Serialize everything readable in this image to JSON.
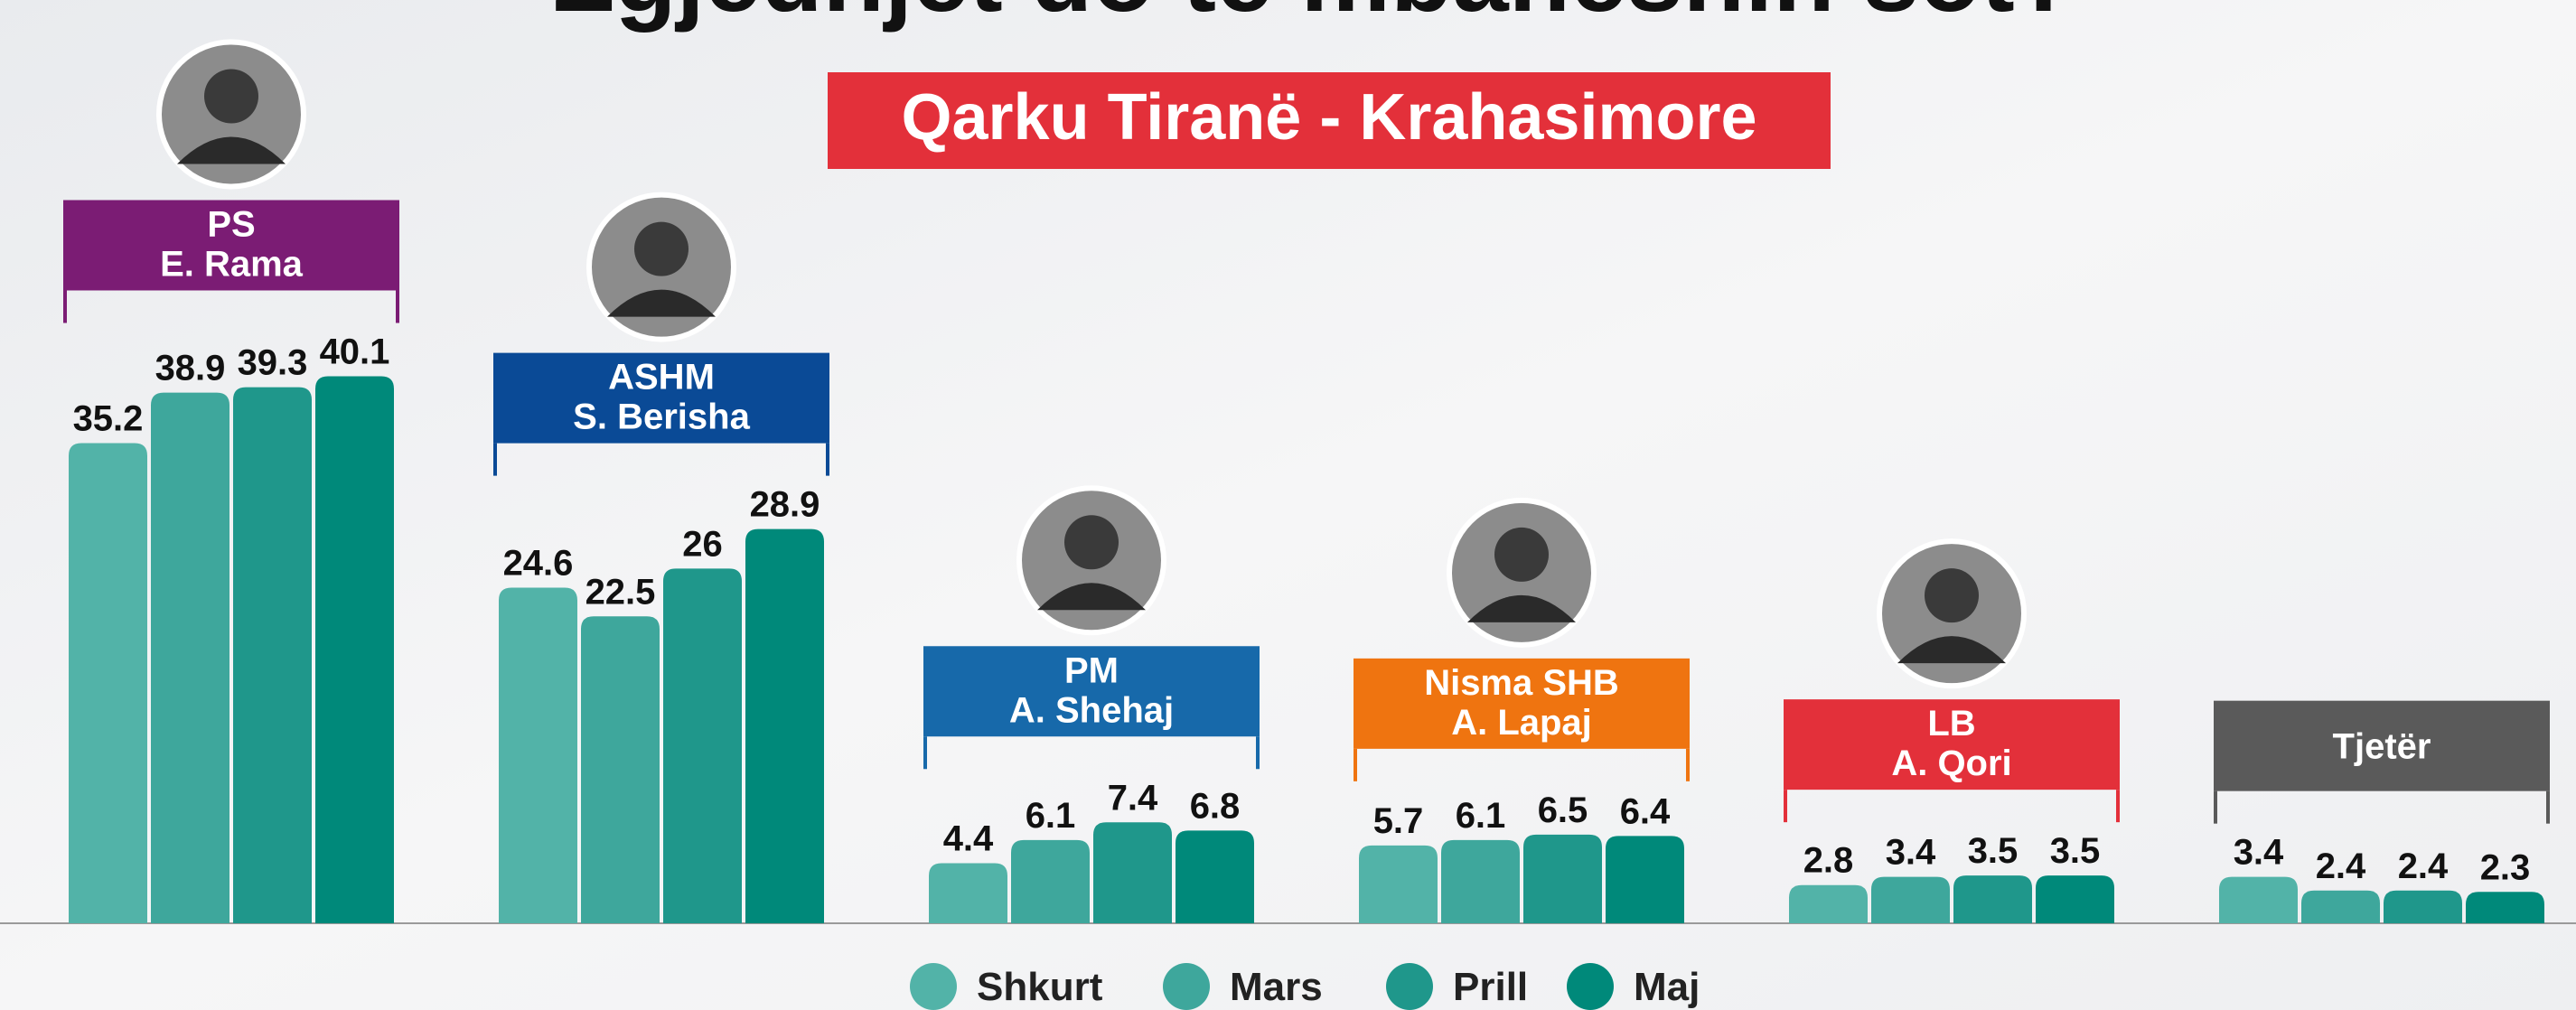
{
  "chart_data": {
    "type": "bar",
    "title": "Zgjedhjet do të mbaheshin sot?",
    "subtitle": "Qarku Tiranë - Krahasimore",
    "categories": [
      "PS",
      "ASHM",
      "PM",
      "Nisma SHB",
      "LB",
      "Tjetër"
    ],
    "leaders": [
      "E. Rama",
      "S. Berisha",
      "A. Shehaj",
      "A. Lapaj",
      "A. Qori",
      null
    ],
    "group_colors": [
      "#7b1c74",
      "#0a4a96",
      "#1769aa",
      "#ef7410",
      "#e3303a",
      "#5a5a5a"
    ],
    "series": [
      {
        "name": "Shkurt",
        "color": "#52b3a8",
        "values": [
          35.2,
          24.6,
          4.4,
          5.7,
          2.8,
          3.4
        ]
      },
      {
        "name": "Mars",
        "color": "#3ea79c",
        "values": [
          38.9,
          22.5,
          6.1,
          6.1,
          3.4,
          2.4
        ]
      },
      {
        "name": "Prill",
        "color": "#1f978b",
        "values": [
          39.3,
          26,
          7.4,
          6.5,
          3.5,
          2.4
        ]
      },
      {
        "name": "Maj",
        "color": "#00897a",
        "values": [
          40.1,
          28.9,
          6.8,
          6.4,
          3.5,
          2.3
        ]
      }
    ]
  }
}
